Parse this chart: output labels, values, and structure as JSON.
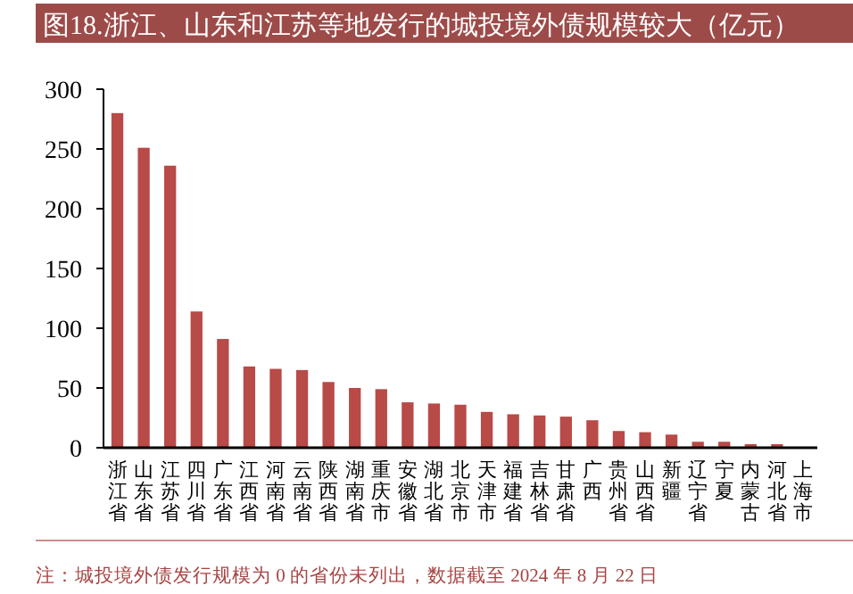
{
  "chart_data": {
    "type": "bar",
    "title": "图18.浙江、山东和江苏等地发行的城投境外债规模较大（亿元）",
    "categories": [
      "浙江省",
      "山东省",
      "江苏省",
      "四川省",
      "广东省",
      "江西省",
      "河南省",
      "云南省",
      "陕西省",
      "湖南省",
      "重庆市",
      "安徽省",
      "湖北省",
      "北京市",
      "天津市",
      "福建省",
      "吉林省",
      "甘肃省",
      "广西",
      "贵州省",
      "山西省",
      "新疆",
      "辽宁省",
      "宁夏",
      "内蒙古",
      "河北省",
      "上海市"
    ],
    "values": [
      280,
      251,
      236,
      114,
      91,
      68,
      66,
      65,
      55,
      50,
      49,
      38,
      37,
      36,
      30,
      28,
      27,
      26,
      23,
      14,
      13,
      11,
      5,
      5,
      3,
      3,
      null
    ],
    "color": "#b84a48",
    "ylim": [
      0,
      300
    ],
    "yticks": [
      0,
      50,
      100,
      150,
      200,
      250,
      300
    ],
    "grid": false,
    "annotations": [
      "注：城投境外债发行规模为 0 的省份未列出，数据截至 2024 年 8 月 22 日"
    ]
  }
}
